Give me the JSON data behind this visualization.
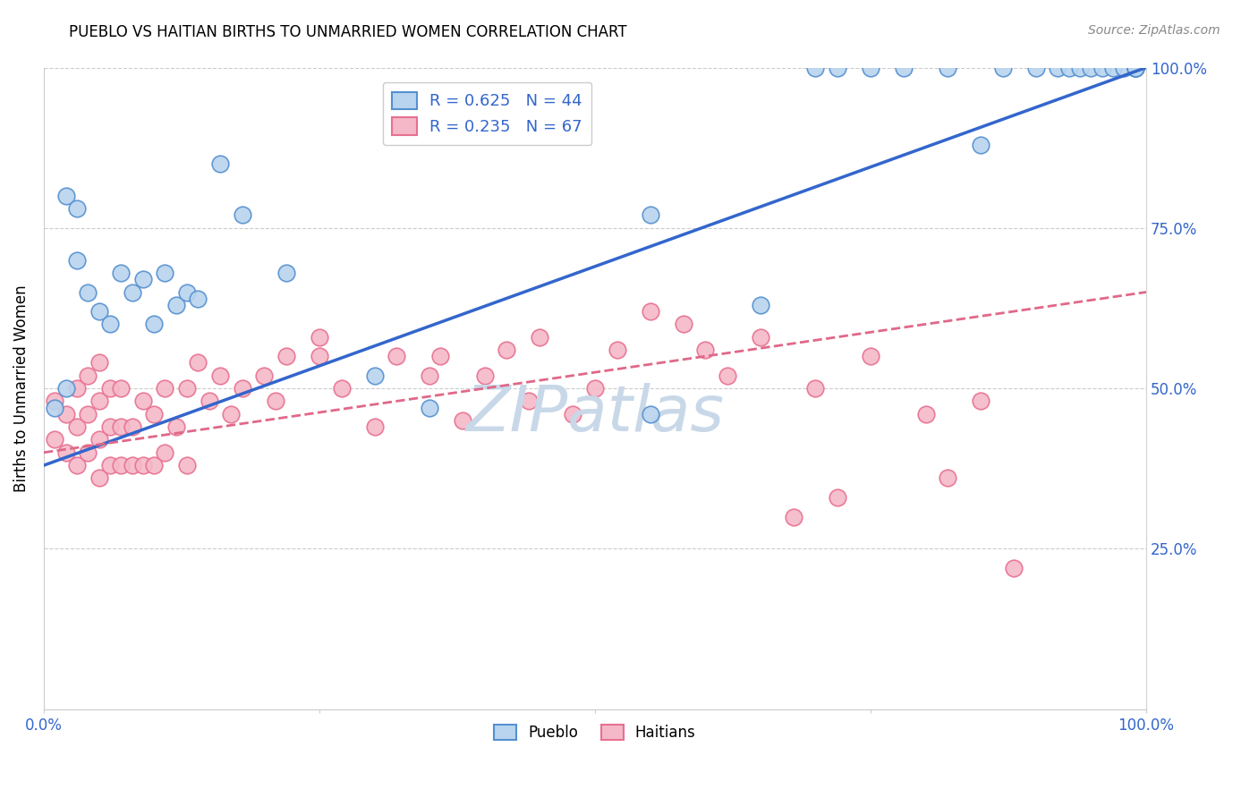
{
  "title": "PUEBLO VS HAITIAN BIRTHS TO UNMARRIED WOMEN CORRELATION CHART",
  "source": "Source: ZipAtlas.com",
  "ylabel": "Births to Unmarried Women",
  "xlim": [
    0,
    100
  ],
  "ylim": [
    0,
    100
  ],
  "xticks": [
    0,
    25,
    50,
    75,
    100
  ],
  "yticks": [
    0,
    25,
    50,
    75,
    100
  ],
  "xticklabels": [
    "0.0%",
    "",
    "",
    "",
    "100.0%"
  ],
  "right_yticklabels": [
    "",
    "25.0%",
    "50.0%",
    "75.0%",
    "100.0%"
  ],
  "pueblo_R": 0.625,
  "pueblo_N": 44,
  "haitian_R": 0.235,
  "haitian_N": 67,
  "pueblo_color": "#b8d4ee",
  "haitian_color": "#f4b8c8",
  "pueblo_edge_color": "#5590d0",
  "haitian_edge_color": "#e87090",
  "pueblo_line_color": "#3366cc",
  "haitian_line_color": "#e06888",
  "pueblo_line_y0": 38,
  "pueblo_line_y1": 100,
  "haitian_line_y0": 40,
  "haitian_line_y1": 65,
  "watermark_text": "ZIPatlas",
  "watermark_color": "#c8d8e8",
  "watermark_fontsize": 52,
  "pueblo_x": [
    2,
    3,
    4,
    5,
    6,
    7,
    8,
    9,
    10,
    11,
    12,
    13,
    14,
    16,
    18,
    22,
    30,
    35,
    55,
    65,
    70,
    72,
    75,
    78,
    82,
    85,
    87,
    90,
    92,
    93,
    94,
    95,
    96,
    97,
    98,
    99,
    99,
    99,
    99,
    99,
    1,
    2,
    3,
    55
  ],
  "pueblo_y": [
    80,
    78,
    65,
    62,
    60,
    68,
    65,
    67,
    60,
    68,
    63,
    65,
    64,
    85,
    77,
    68,
    52,
    47,
    46,
    63,
    100,
    100,
    100,
    100,
    100,
    88,
    100,
    100,
    100,
    100,
    100,
    100,
    100,
    100,
    100,
    100,
    100,
    100,
    100,
    100,
    47,
    50,
    70,
    77
  ],
  "haitian_x": [
    1,
    1,
    2,
    2,
    3,
    3,
    3,
    4,
    4,
    4,
    5,
    5,
    5,
    5,
    6,
    6,
    6,
    7,
    7,
    7,
    8,
    8,
    9,
    9,
    10,
    10,
    11,
    11,
    12,
    13,
    13,
    14,
    15,
    16,
    17,
    18,
    20,
    21,
    22,
    25,
    25,
    27,
    30,
    32,
    35,
    36,
    38,
    40,
    42,
    44,
    45,
    48,
    50,
    52,
    55,
    58,
    60,
    62,
    65,
    68,
    70,
    72,
    75,
    80,
    82,
    85,
    88
  ],
  "haitian_y": [
    42,
    48,
    40,
    46,
    38,
    44,
    50,
    40,
    46,
    52,
    36,
    42,
    48,
    54,
    38,
    44,
    50,
    38,
    44,
    50,
    38,
    44,
    38,
    48,
    38,
    46,
    40,
    50,
    44,
    38,
    50,
    54,
    48,
    52,
    46,
    50,
    52,
    48,
    55,
    55,
    58,
    50,
    44,
    55,
    52,
    55,
    45,
    52,
    56,
    48,
    58,
    46,
    50,
    56,
    62,
    60,
    56,
    52,
    58,
    30,
    50,
    33,
    55,
    46,
    36,
    48,
    22
  ]
}
